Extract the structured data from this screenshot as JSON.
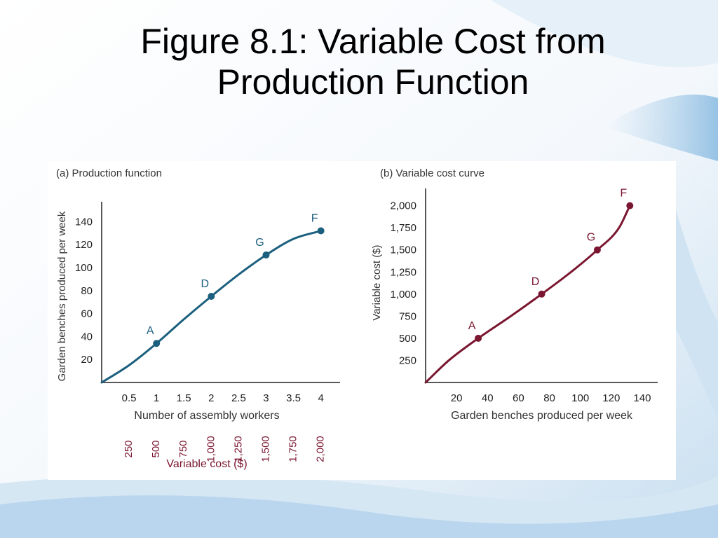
{
  "slide": {
    "title_line1": "Figure 8.1: Variable Cost from",
    "title_line2": "Production Function"
  },
  "colors": {
    "production_curve": "#1b5f7e",
    "cost_curve": "#7a1630",
    "cost_tick_text": "#7a1630",
    "axis": "#222222",
    "background_accent": "#9cc3e0"
  },
  "chart_data": [
    {
      "type": "line",
      "title": "(a) Production function",
      "xlabel": "Number of assembly workers",
      "ylabel": "Garden benches produced per week",
      "xlim": [
        0,
        4.35
      ],
      "ylim": [
        0,
        150
      ],
      "x_ticks": [
        0.5,
        1,
        1.5,
        2,
        2.5,
        3,
        3.5,
        4
      ],
      "x_tick_labels": [
        "0.5",
        "1",
        "1.5",
        "2",
        "2.5",
        "3",
        "3.5",
        "4"
      ],
      "y_ticks": [
        20,
        40,
        60,
        80,
        100,
        120,
        140
      ],
      "y_tick_labels": [
        "20",
        "40",
        "60",
        "80",
        "100",
        "120",
        "140"
      ],
      "secondary_x_label": "Variable cost ($)",
      "secondary_x_tick_labels": [
        "250",
        "500",
        "750",
        "1,000",
        "1,250",
        "1,500",
        "1,750",
        "2,000"
      ],
      "series": [
        {
          "x": [
            0,
            0.5,
            1,
            1.5,
            2,
            2.5,
            3,
            3.5,
            4
          ],
          "y": [
            0,
            15,
            34,
            55,
            75,
            94,
            111,
            125,
            132
          ]
        }
      ],
      "points": [
        {
          "label": "A",
          "x": 1,
          "y": 34
        },
        {
          "label": "D",
          "x": 2,
          "y": 75
        },
        {
          "label": "G",
          "x": 3,
          "y": 111
        },
        {
          "label": "F",
          "x": 4,
          "y": 132
        }
      ],
      "grid": false,
      "legend": "none"
    },
    {
      "type": "line",
      "title": "(b) Variable cost curve",
      "xlabel": "Garden benches produced per week",
      "ylabel": "Variable cost ($)",
      "xlim": [
        0,
        150
      ],
      "ylim": [
        0,
        2100
      ],
      "x_ticks": [
        20,
        40,
        60,
        80,
        100,
        120,
        140
      ],
      "x_tick_labels": [
        "20",
        "40",
        "60",
        "80",
        "100",
        "120",
        "140"
      ],
      "y_ticks": [
        250,
        500,
        750,
        1000,
        1250,
        1500,
        1750,
        2000
      ],
      "y_tick_labels": [
        "250",
        "500",
        "750",
        "1,000",
        "1,250",
        "1,500",
        "1,750",
        "2,000"
      ],
      "series": [
        {
          "x": [
            0,
            15,
            34,
            55,
            75,
            94,
            111,
            125,
            132
          ],
          "y": [
            0,
            250,
            500,
            750,
            1000,
            1250,
            1500,
            1750,
            2000
          ]
        }
      ],
      "points": [
        {
          "label": "A",
          "x": 34,
          "y": 500
        },
        {
          "label": "D",
          "x": 75,
          "y": 1000
        },
        {
          "label": "G",
          "x": 111,
          "y": 1500
        },
        {
          "label": "F",
          "x": 132,
          "y": 2000
        }
      ],
      "grid": false,
      "legend": "none"
    }
  ]
}
